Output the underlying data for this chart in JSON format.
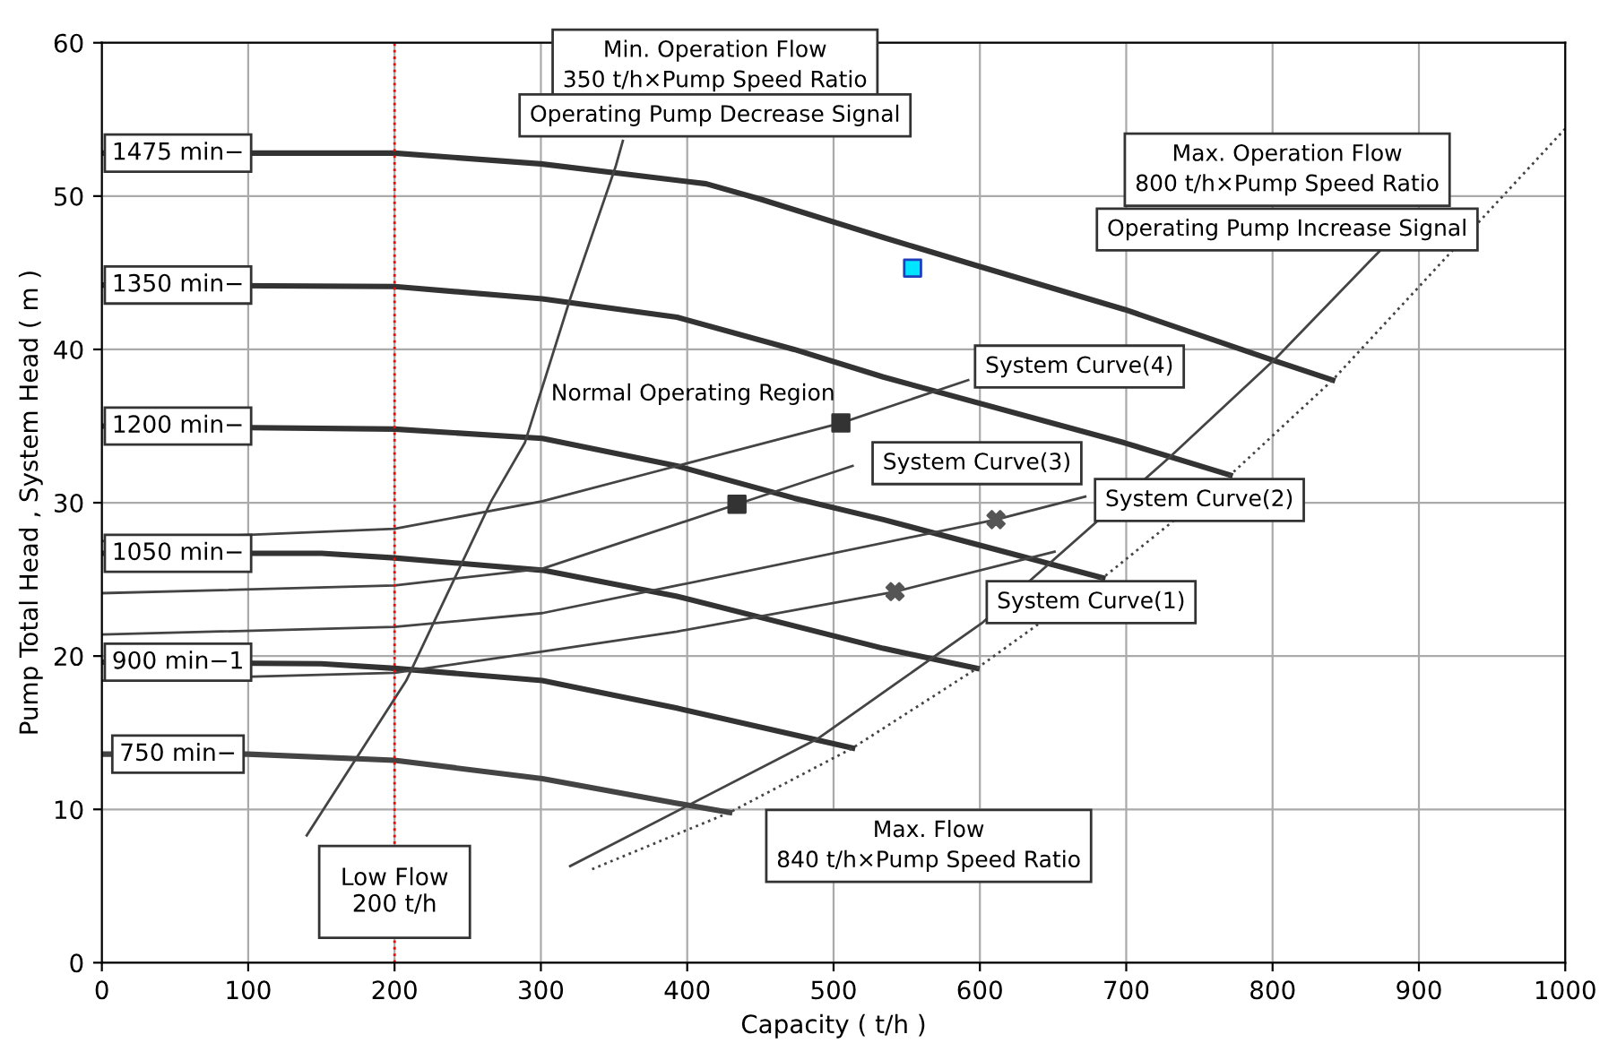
{
  "chart_data": {
    "type": "line",
    "xlabel": "Capacity ( t/h )",
    "ylabel": "Pump Total Head , System Head ( m )",
    "xlim": [
      0,
      1000
    ],
    "ylim": [
      0,
      60
    ],
    "xticks": [
      0,
      100,
      200,
      300,
      400,
      500,
      600,
      700,
      800,
      900,
      1000
    ],
    "yticks": [
      0,
      10,
      20,
      30,
      40,
      50,
      60
    ],
    "grid": true,
    "series": [
      {
        "name": "1475 min−",
        "color": "#333333",
        "x": [
          0,
          200,
          300,
          413,
          450,
          534,
          600,
          699,
          800,
          841
        ],
        "values": [
          52.8,
          52.8,
          52.1,
          50.8,
          49.8,
          47.3,
          45.4,
          42.6,
          39.3,
          38.0
        ]
      },
      {
        "name": "1350 min−",
        "color": "#333333",
        "x": [
          0,
          200,
          301,
          393,
          473,
          534,
          699,
          771
        ],
        "values": [
          44.2,
          44.1,
          43.3,
          42.1,
          40.0,
          38.2,
          33.9,
          31.8
        ]
      },
      {
        "name": "1200 min−",
        "color": "#333333",
        "x": [
          0,
          200,
          301,
          393,
          473,
          534,
          684
        ],
        "values": [
          35.0,
          34.8,
          34.2,
          32.4,
          30.3,
          28.9,
          25.1
        ]
      },
      {
        "name": "1050 min−",
        "color": "#333333",
        "x": [
          0,
          150,
          200,
          301,
          393,
          534,
          598
        ],
        "values": [
          26.7,
          26.7,
          26.4,
          25.6,
          23.9,
          20.5,
          19.2
        ]
      },
      {
        "name": "900 min−1",
        "color": "#333333",
        "x": [
          0,
          150,
          200,
          301,
          393,
          513
        ],
        "values": [
          19.6,
          19.5,
          19.2,
          18.4,
          16.6,
          14.0
        ]
      },
      {
        "name": "750 min−",
        "color": "#444444",
        "x": [
          0,
          100,
          200,
          301,
          393,
          429
        ],
        "values": [
          13.6,
          13.6,
          13.2,
          12.0,
          10.4,
          9.8
        ]
      },
      {
        "color": "#444444",
        "x": [
          140,
          208,
          266,
          289,
          320,
          351,
          356
        ],
        "values": [
          8.3,
          18.4,
          30.1,
          33.9,
          43.3,
          51.9,
          53.6
        ]
      },
      {
        "color": "#444444",
        "x": [
          320,
          489,
          602,
          730,
          802,
          873
        ],
        "values": [
          6.3,
          14.6,
          22.2,
          33.0,
          39.4,
          46.4
        ]
      },
      {
        "color": "#444444",
        "line_style": "dotted",
        "x": [
          335,
          429,
          513,
          598,
          684,
          771,
          841,
          1000
        ],
        "values": [
          6.1,
          9.8,
          14.0,
          19.2,
          25.1,
          31.8,
          38.0,
          54.4
        ]
      },
      {
        "color": "#444444",
        "x": [
          0,
          200,
          301,
          393,
          542,
          651
        ],
        "values": [
          18.4,
          18.9,
          20.3,
          21.6,
          24.2,
          26.8
        ]
      },
      {
        "color": "#444444",
        "x": [
          0,
          200,
          301,
          393,
          611,
          672
        ],
        "values": [
          21.4,
          21.9,
          22.8,
          24.6,
          28.9,
          30.4
        ]
      },
      {
        "color": "#444444",
        "x": [
          0,
          200,
          301,
          434,
          513
        ],
        "values": [
          24.1,
          24.6,
          25.7,
          29.9,
          32.4
        ]
      },
      {
        "color": "#444444",
        "x": [
          0,
          200,
          301,
          393,
          505,
          592
        ],
        "values": [
          27.5,
          28.3,
          30.1,
          32.4,
          35.2,
          38.0
        ]
      },
      {
        "type": "scatter",
        "marker": "square",
        "color": "#333333",
        "x": [
          505,
          434
        ],
        "values": [
          35.2,
          29.9
        ]
      },
      {
        "type": "scatter",
        "marker": "cross",
        "color": "#555555",
        "x": [
          611,
          542
        ],
        "values": [
          28.9,
          24.2
        ]
      },
      {
        "type": "scatter",
        "marker": "square",
        "color": "#00e5ff",
        "x": [
          554
        ],
        "values": [
          45.3
        ]
      }
    ],
    "ref_lines": [
      {
        "axis": "x",
        "value": 200,
        "label": "Low Flow\n200 t/h",
        "color": "#ff0000",
        "line_style": "dotted"
      }
    ],
    "annotations": [
      "Min. Operation Flow\n350 t/h×Pump Speed Ratio",
      "Operating Pump Decrease Signal",
      "Max. Operation Flow\n800 t/h×Pump Speed Ratio",
      "Operating Pump Increase Signal",
      "Max. Flow\n840 t/h×Pump Speed Ratio",
      "Normal Operating Region",
      "System Curve(4)",
      "System Curve(3)",
      "System Curve(2)",
      "System Curve(1)"
    ]
  }
}
